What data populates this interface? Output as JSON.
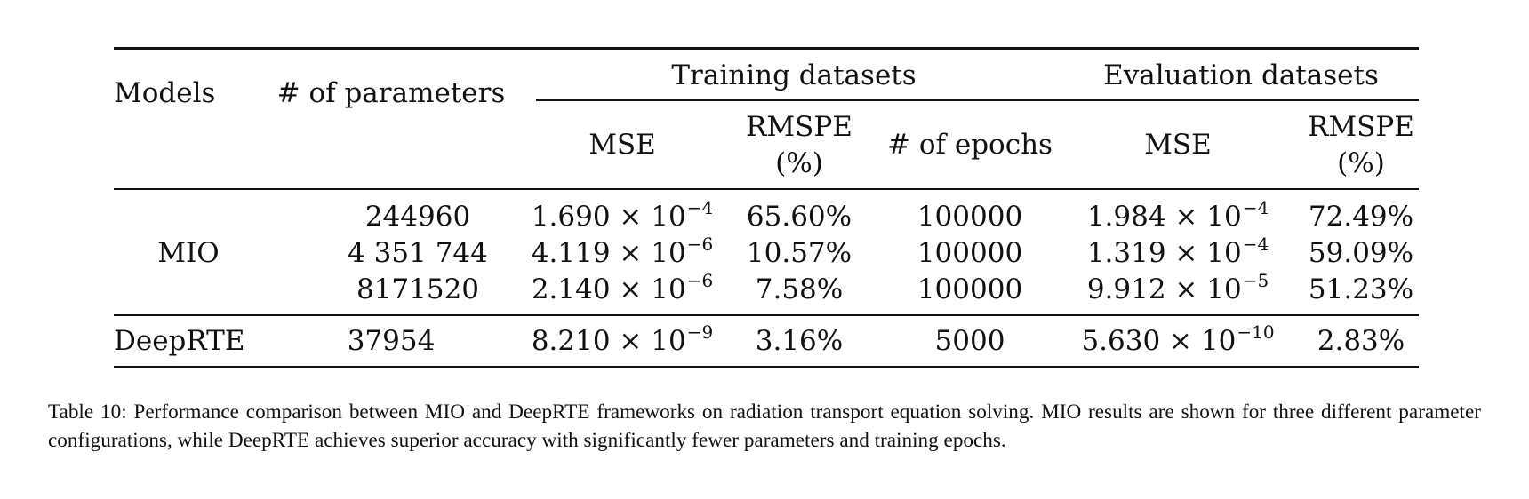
{
  "table": {
    "header": {
      "models": "Models",
      "params": "# of parameters",
      "training_group": "Training datasets",
      "evaluation_group": "Evaluation datasets",
      "train_mse": "MSE",
      "train_rmspe_line1": "RMSPE",
      "train_rmspe_line2": "(%)",
      "train_epochs": "# of epochs",
      "eval_mse": "MSE",
      "eval_rmspe_line1": "RMSPE",
      "eval_rmspe_line2": "(%)"
    },
    "mio_label": "MIO",
    "deeprte_label": "DeepRTE",
    "rows": [
      {
        "params": "244960",
        "train_mse_mant": "1.690 × 10",
        "train_mse_exp": "−4",
        "train_rmspe": "65.60%",
        "epochs": "100000",
        "eval_mse_mant": "1.984 × 10",
        "eval_mse_exp": "−4",
        "eval_rmspe": "72.49%"
      },
      {
        "params": "4 351 744",
        "train_mse_mant": "4.119 × 10",
        "train_mse_exp": "−6",
        "train_rmspe": "10.57%",
        "epochs": "100000",
        "eval_mse_mant": "1.319 × 10",
        "eval_mse_exp": "−4",
        "eval_rmspe": "59.09%"
      },
      {
        "params": "8171520",
        "train_mse_mant": "2.140 × 10",
        "train_mse_exp": "−6",
        "train_rmspe": "7.58%",
        "epochs": "100000",
        "eval_mse_mant": "9.912 × 10",
        "eval_mse_exp": "−5",
        "eval_rmspe": "51.23%"
      },
      {
        "params": "37954",
        "train_mse_mant": "8.210 × 10",
        "train_mse_exp": "−9",
        "train_rmspe": "3.16%",
        "epochs": "5000",
        "eval_mse_mant": "5.630 × 10",
        "eval_mse_exp": "−10",
        "eval_rmspe": "2.83%"
      }
    ]
  },
  "caption": "Table 10: Performance comparison between MIO and DeepRTE frameworks on radiation transport equation solving. MIO results are shown for three different parameter configurations, while DeepRTE achieves superior accuracy with significantly fewer parameters and training epochs."
}
